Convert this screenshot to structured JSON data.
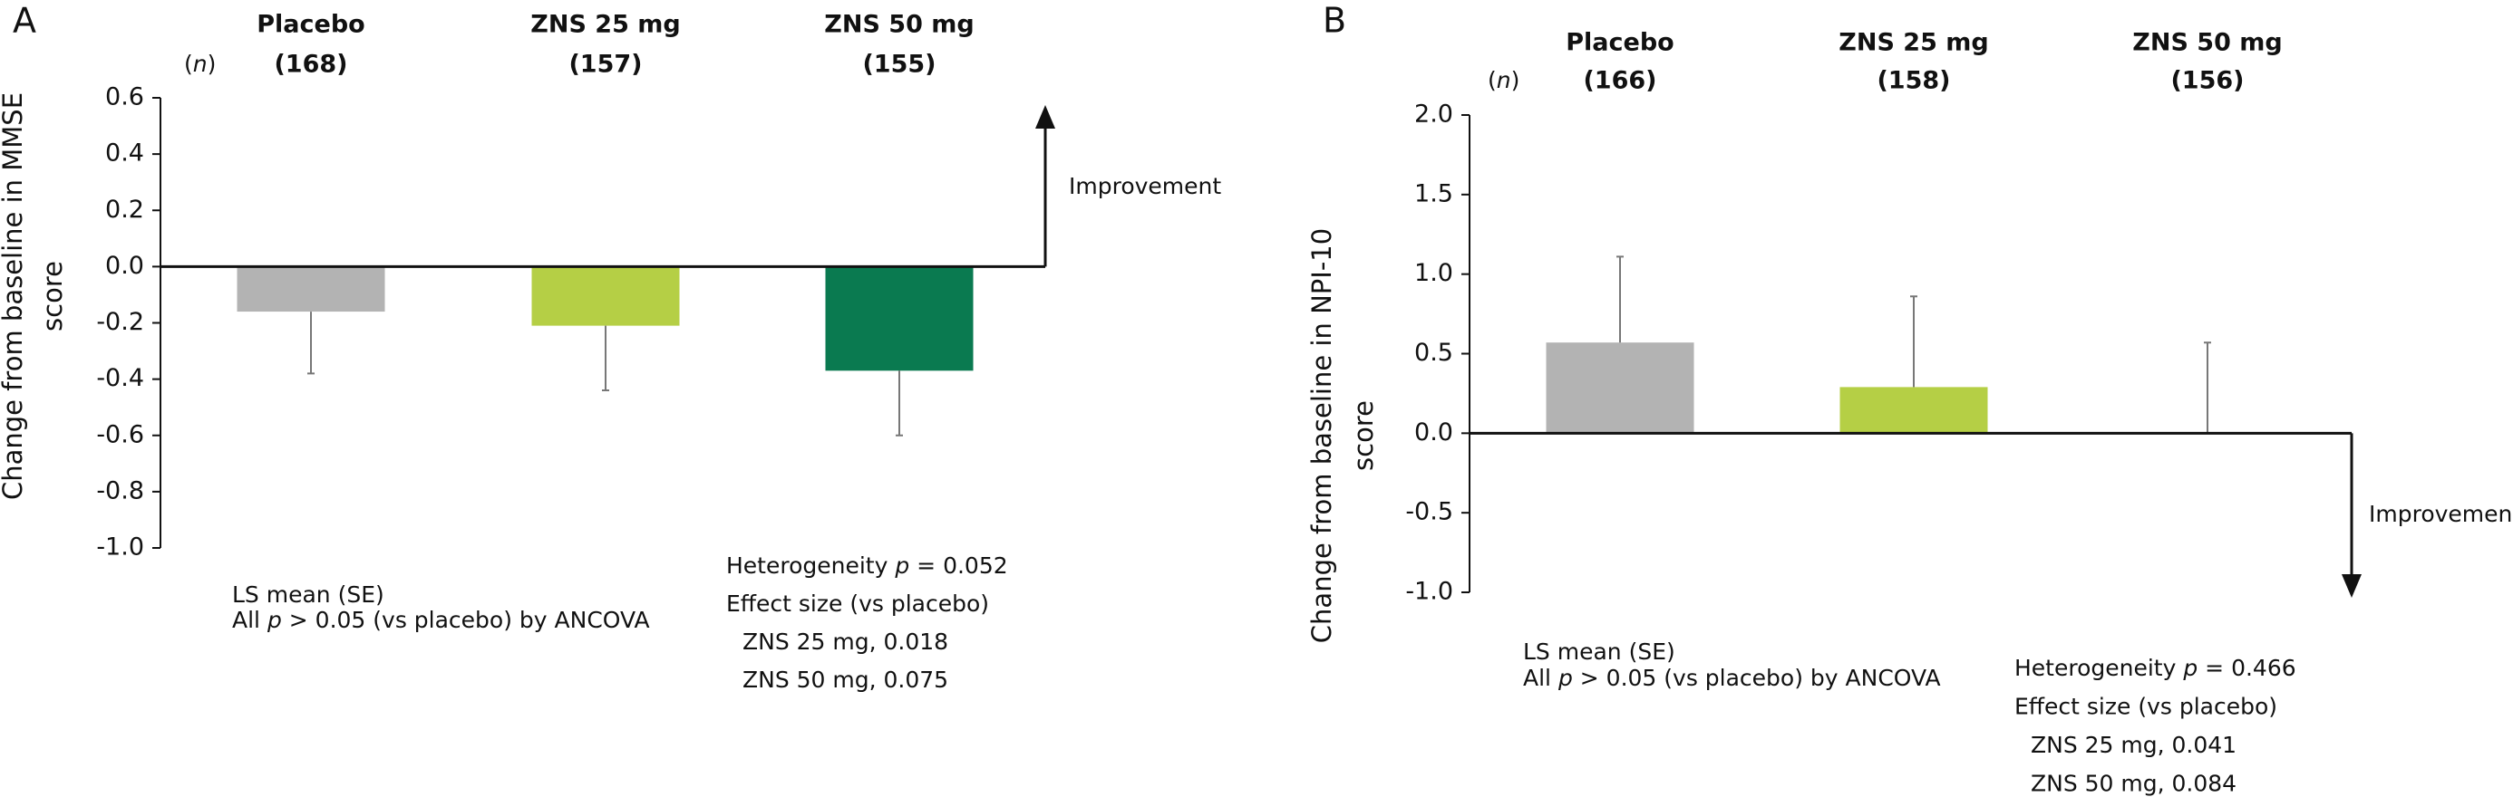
{
  "chart_data": [
    {
      "type": "bar",
      "panel_label": "A",
      "n_header": [
        "(",
        "n",
        ")"
      ],
      "categories": [
        "Placebo",
        "ZNS 25 mg",
        "ZNS 50 mg"
      ],
      "n_labels": [
        "(168)",
        "(157)",
        "(155)"
      ],
      "values": [
        -0.16,
        -0.21,
        -0.37
      ],
      "errors": [
        0.22,
        0.23,
        0.23
      ],
      "error_direction": "down",
      "colors": [
        "#b3b3b3",
        "#b5cf45",
        "#0a7a50"
      ],
      "ylim": [
        -1.0,
        0.6
      ],
      "yticks": [
        {
          "value": -1.0,
          "label": "-1.0"
        },
        -0.8,
        -0.6,
        -0.4,
        -0.2,
        {
          "value": 0.0,
          "label": "0.0"
        },
        0.2,
        0.4,
        0.6
      ],
      "y_label": [
        "Change from baseline in MMSE",
        "score"
      ],
      "direction_label": "Improvement",
      "improvement_direction": "up",
      "notes_left": [
        [
          "LS mean (SE)"
        ],
        [
          "All ",
          "p",
          " > 0.05 (vs placebo) by ANCOVA"
        ]
      ],
      "notes_right": [
        [
          "Heterogeneity ",
          "p",
          " = 0.052"
        ],
        [
          "Effect size (vs placebo)"
        ],
        [
          "ZNS 25 mg, 0.018"
        ],
        [
          "ZNS 50 mg, 0.075"
        ]
      ]
    },
    {
      "type": "bar",
      "panel_label": "B",
      "n_header": [
        "(",
        "n",
        ")"
      ],
      "categories": [
        "Placebo",
        "ZNS 25 mg",
        "ZNS 50 mg"
      ],
      "n_labels": [
        "(166)",
        "(158)",
        "(156)"
      ],
      "values": [
        0.57,
        0.29,
        0.0
      ],
      "errors": [
        0.54,
        0.57,
        0.57
      ],
      "error_direction": "up",
      "colors": [
        "#b3b3b3",
        "#b5cf45",
        "#0a7a50"
      ],
      "ylim": [
        -1.0,
        2.0
      ],
      "yticks": [
        {
          "value": -1.0,
          "label": "-1.0"
        },
        -0.5,
        {
          "value": 0.0,
          "label": "0.0"
        },
        0.5,
        {
          "value": 1.0,
          "label": "1.0"
        },
        1.5,
        {
          "value": 2.0,
          "label": "2.0"
        }
      ],
      "y_label": [
        "Change from baseline in NPI-10",
        "score"
      ],
      "direction_label": "Improvement",
      "improvement_direction": "down",
      "notes_left": [
        [
          "LS mean (SE)"
        ],
        [
          "All ",
          "p",
          " > 0.05 (vs placebo) by ANCOVA"
        ]
      ],
      "notes_right": [
        [
          "Heterogeneity ",
          "p",
          " = 0.466"
        ],
        [
          "Effect size (vs placebo)"
        ],
        [
          "ZNS 25 mg, 0.041"
        ],
        [
          "ZNS 50 mg, 0.084"
        ]
      ]
    }
  ]
}
